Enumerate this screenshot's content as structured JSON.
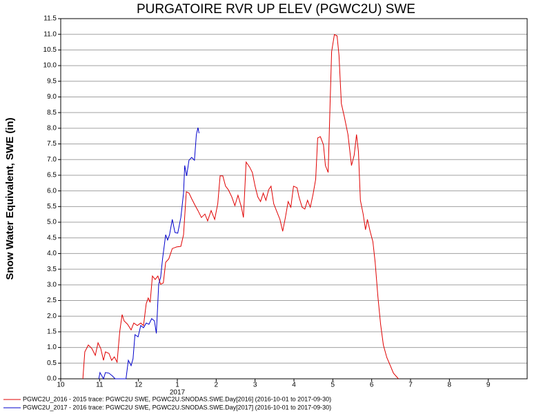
{
  "chart_data": {
    "type": "line",
    "title": "PURGATOIRE RVR UP ELEV (PGWC2U) SWE",
    "ylabel": "Snow Water Equivalent, SWE (in)",
    "year_label": "2017",
    "xlim": [
      0,
      12
    ],
    "xticks": [
      {
        "value": 0,
        "label": "10"
      },
      {
        "value": 1,
        "label": "11"
      },
      {
        "value": 2,
        "label": "12"
      },
      {
        "value": 3,
        "label": "1"
      },
      {
        "value": 4,
        "label": "2"
      },
      {
        "value": 5,
        "label": "3"
      },
      {
        "value": 6,
        "label": "4"
      },
      {
        "value": 7,
        "label": "5"
      },
      {
        "value": 8,
        "label": "6"
      },
      {
        "value": 9,
        "label": "7"
      },
      {
        "value": 10,
        "label": "8"
      },
      {
        "value": 11,
        "label": "9"
      }
    ],
    "ylim": [
      0,
      11.5
    ],
    "yticks": [
      {
        "value": 0,
        "label": "0.0"
      },
      0.5,
      {
        "value": 1,
        "label": "1.0"
      },
      1.5,
      {
        "value": 2,
        "label": "2.0"
      },
      2.5,
      {
        "value": 3,
        "label": "3.0"
      },
      3.5,
      {
        "value": 4,
        "label": "4.0"
      },
      4.5,
      {
        "value": 5,
        "label": "5.0"
      },
      5.5,
      {
        "value": 6,
        "label": "6.0"
      },
      6.5,
      {
        "value": 7,
        "label": "7.0"
      },
      7.5,
      {
        "value": 8,
        "label": "8.0"
      },
      8.5,
      {
        "value": 9,
        "label": "9.0"
      },
      9.5,
      {
        "value": 10,
        "label": "10.0"
      },
      10.5,
      {
        "value": 11,
        "label": "11.0"
      },
      11.5
    ],
    "grid": true,
    "series": [
      {
        "name": "PGWC2U_2016 - 2015 trace: PGWC2U SWE, PGWC2U.SNODAS.SWE.Day[2016] (2016-10-01 to 2017-09-30)",
        "color": "#e00000",
        "x": [
          0.57,
          0.62,
          0.71,
          0.8,
          0.89,
          0.96,
          1.03,
          1.1,
          1.15,
          1.24,
          1.31,
          1.38,
          1.45,
          1.52,
          1.58,
          1.63,
          1.72,
          1.81,
          1.88,
          1.97,
          2.06,
          2.13,
          2.2,
          2.25,
          2.3,
          2.36,
          2.43,
          2.5,
          2.57,
          2.64,
          2.7,
          2.78,
          2.87,
          2.98,
          3.09,
          3.16,
          3.23,
          3.3,
          3.37,
          3.46,
          3.53,
          3.62,
          3.71,
          3.78,
          3.87,
          3.96,
          4.04,
          4.1,
          4.17,
          4.24,
          4.31,
          4.4,
          4.48,
          4.56,
          4.65,
          4.7,
          4.77,
          4.86,
          4.93,
          5.0,
          5.07,
          5.14,
          5.21,
          5.28,
          5.35,
          5.41,
          5.48,
          5.55,
          5.64,
          5.71,
          5.78,
          5.85,
          5.92,
          5.99,
          6.08,
          6.13,
          6.21,
          6.28,
          6.35,
          6.42,
          6.49,
          6.56,
          6.61,
          6.68,
          6.76,
          6.81,
          6.88,
          6.93,
          6.97,
          7.04,
          7.11,
          7.16,
          7.22,
          7.3,
          7.39,
          7.48,
          7.55,
          7.61,
          7.66,
          7.71,
          7.78,
          7.84,
          7.89,
          7.96,
          8.03,
          8.09,
          8.16,
          8.23,
          8.3,
          8.39,
          8.48,
          8.56,
          8.69
        ],
        "values": [
          0,
          0.86,
          1.08,
          0.97,
          0.75,
          1.15,
          0.97,
          0.59,
          0.86,
          0.81,
          0.59,
          0.7,
          0.53,
          1.52,
          2.05,
          1.85,
          1.74,
          1.56,
          1.78,
          1.7,
          1.78,
          1.7,
          2.4,
          2.58,
          2.44,
          3.28,
          3.17,
          3.28,
          3.02,
          3.06,
          3.72,
          3.83,
          4.16,
          4.21,
          4.23,
          4.6,
          5.97,
          5.93,
          5.75,
          5.53,
          5.37,
          5.15,
          5.26,
          5.04,
          5.37,
          5.09,
          5.59,
          6.48,
          6.48,
          6.15,
          6.04,
          5.81,
          5.53,
          5.86,
          5.48,
          5.15,
          6.92,
          6.76,
          6.59,
          6.15,
          5.81,
          5.66,
          5.93,
          5.7,
          6.04,
          6.15,
          5.59,
          5.37,
          5.09,
          4.71,
          5.15,
          5.66,
          5.48,
          6.15,
          6.1,
          5.81,
          5.48,
          5.42,
          5.7,
          5.48,
          5.88,
          6.37,
          7.69,
          7.73,
          7.47,
          6.81,
          6.59,
          8.79,
          10.44,
          10.99,
          10.95,
          10.33,
          8.79,
          8.35,
          7.8,
          6.81,
          7.14,
          7.8,
          7.25,
          5.7,
          5.26,
          4.76,
          5.09,
          4.71,
          4.38,
          3.72,
          2.62,
          1.74,
          1.08,
          0.68,
          0.42,
          0.18,
          0
        ]
      },
      {
        "name": "PGWC2U_2017 - 2016 trace: PGWC2U SWE, PGWC2U.SNODAS.SWE.Day[2017] (2016-10-01 to 2017-09-30)",
        "color": "#0000cc",
        "x": [
          0.98,
          1.01,
          1.1,
          1.15,
          1.24,
          1.33,
          1.4,
          1.68,
          1.74,
          1.81,
          1.86,
          1.91,
          1.99,
          2.06,
          2.13,
          2.2,
          2.27,
          2.34,
          2.41,
          2.46,
          2.52,
          2.57,
          2.62,
          2.7,
          2.75,
          2.8,
          2.87,
          2.94,
          3.01,
          3.09,
          3.16,
          3.19,
          3.24,
          3.3,
          3.37,
          3.44,
          3.49,
          3.53,
          3.56
        ],
        "values": [
          0,
          0.2,
          0,
          0.2,
          0.18,
          0.09,
          0,
          0,
          0.59,
          0.42,
          0.64,
          1.41,
          1.34,
          1.7,
          1.63,
          1.78,
          1.74,
          1.92,
          1.85,
          1.45,
          3.02,
          3.24,
          3.83,
          4.6,
          4.43,
          4.6,
          5.09,
          4.67,
          4.65,
          5.15,
          5.93,
          6.81,
          6.48,
          6.98,
          7.07,
          6.98,
          7.8,
          8.02,
          7.84
        ]
      }
    ]
  }
}
